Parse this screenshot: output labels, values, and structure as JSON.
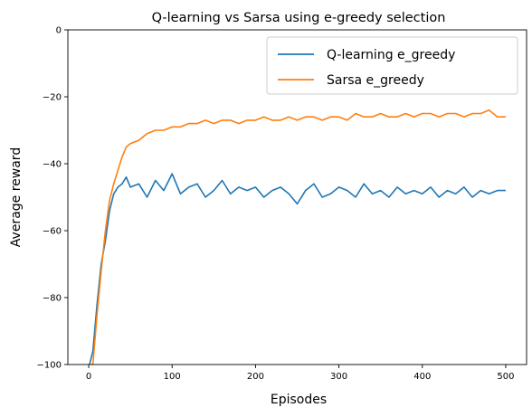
{
  "chart_data": {
    "type": "line",
    "title": "Q-learning vs Sarsa using e-greedy selection",
    "xlabel": "Episodes",
    "ylabel": "Average reward",
    "xlim": [
      -25,
      525
    ],
    "ylim": [
      -100,
      0
    ],
    "xticks": [
      0,
      100,
      200,
      300,
      400,
      500
    ],
    "yticks": [
      -100,
      -80,
      -60,
      -40,
      -20,
      0
    ],
    "grid": false,
    "legend_position": "top-right",
    "series": [
      {
        "name": "Q-learning e_greedy",
        "color": "#1f77b4",
        "x": [
          1,
          5,
          10,
          15,
          20,
          25,
          30,
          35,
          40,
          45,
          50,
          60,
          70,
          80,
          90,
          100,
          110,
          120,
          130,
          140,
          150,
          160,
          170,
          180,
          190,
          200,
          210,
          220,
          230,
          240,
          250,
          260,
          270,
          280,
          290,
          300,
          310,
          320,
          330,
          340,
          350,
          360,
          370,
          380,
          390,
          400,
          410,
          420,
          430,
          440,
          450,
          460,
          470,
          480,
          490,
          500
        ],
        "y": [
          -100,
          -96,
          -82,
          -70,
          -63,
          -54,
          -49,
          -47,
          -46,
          -44,
          -47,
          -46,
          -50,
          -45,
          -48,
          -43,
          -49,
          -47,
          -46,
          -50,
          -48,
          -45,
          -49,
          -47,
          -48,
          -47,
          -50,
          -48,
          -47,
          -49,
          -52,
          -48,
          -46,
          -50,
          -49,
          -47,
          -48,
          -50,
          -46,
          -49,
          -48,
          -50,
          -47,
          -49,
          -48,
          -49,
          -47,
          -50,
          -48,
          -49,
          -47,
          -50,
          -48,
          -49,
          -48,
          -48
        ]
      },
      {
        "name": "Sarsa e_greedy",
        "color": "#ff7f0e",
        "x": [
          1,
          5,
          10,
          15,
          20,
          25,
          30,
          35,
          40,
          45,
          50,
          60,
          70,
          80,
          90,
          100,
          110,
          120,
          130,
          140,
          150,
          160,
          170,
          180,
          190,
          200,
          210,
          220,
          230,
          240,
          250,
          260,
          270,
          280,
          290,
          300,
          310,
          320,
          330,
          340,
          350,
          360,
          370,
          380,
          390,
          400,
          410,
          420,
          430,
          440,
          450,
          460,
          470,
          480,
          490,
          500
        ],
        "y": [
          -100,
          -100,
          -85,
          -72,
          -60,
          -51,
          -46,
          -42,
          -38,
          -35,
          -34,
          -33,
          -31,
          -30,
          -30,
          -29,
          -29,
          -28,
          -28,
          -27,
          -28,
          -27,
          -27,
          -28,
          -27,
          -27,
          -26,
          -27,
          -27,
          -26,
          -27,
          -26,
          -26,
          -27,
          -26,
          -26,
          -27,
          -25,
          -26,
          -26,
          -25,
          -26,
          -26,
          -25,
          -26,
          -25,
          -25,
          -26,
          -25,
          -25,
          -26,
          -25,
          -25,
          -24,
          -26,
          -26
        ]
      }
    ]
  }
}
